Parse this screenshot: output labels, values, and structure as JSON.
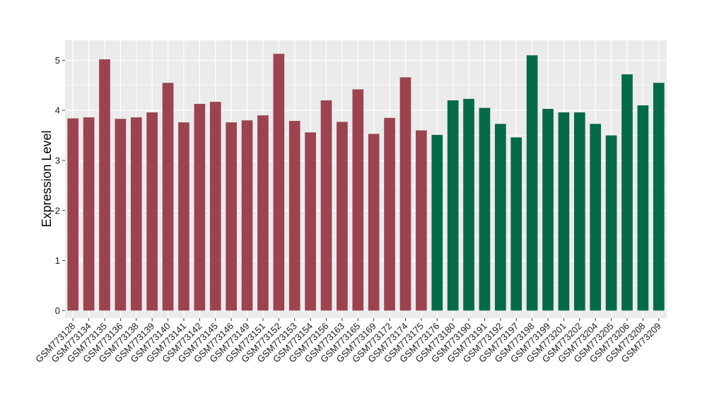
{
  "chart_data": {
    "type": "bar",
    "title": "",
    "xlabel": "",
    "ylabel": "Expression Level",
    "ylim": [
      -0.15,
      5.4
    ],
    "yticks": [
      0,
      1,
      2,
      3,
      4,
      5
    ],
    "grid": true,
    "legend": "none",
    "background": "#ebebeb",
    "categories": [
      "GSM773128",
      "GSM773134",
      "GSM773135",
      "GSM773136",
      "GSM773138",
      "GSM773139",
      "GSM773140",
      "GSM773141",
      "GSM773142",
      "GSM773145",
      "GSM773146",
      "GSM773149",
      "GSM773151",
      "GSM773152",
      "GSM773153",
      "GSM773154",
      "GSM773156",
      "GSM773163",
      "GSM773165",
      "GSM773169",
      "GSM773172",
      "GSM773174",
      "GSM773175",
      "GSM773176",
      "GSM773180",
      "GSM773190",
      "GSM773191",
      "GSM773192",
      "GSM773197",
      "GSM773198",
      "GSM773199",
      "GSM773201",
      "GSM773202",
      "GSM773204",
      "GSM773205",
      "GSM773206",
      "GSM773208",
      "GSM773209"
    ],
    "values": [
      3.84,
      3.86,
      5.02,
      3.83,
      3.86,
      3.96,
      4.55,
      3.76,
      4.13,
      4.17,
      3.76,
      3.8,
      3.9,
      5.13,
      3.79,
      3.56,
      4.2,
      3.77,
      4.42,
      3.53,
      3.85,
      4.66,
      3.6,
      3.51,
      4.2,
      4.23,
      4.05,
      3.73,
      3.46,
      5.1,
      4.03,
      3.96,
      3.96,
      3.73,
      3.5,
      4.72,
      4.1,
      4.55
    ],
    "groups": [
      0,
      0,
      0,
      0,
      0,
      0,
      0,
      0,
      0,
      0,
      0,
      0,
      0,
      0,
      0,
      0,
      0,
      0,
      0,
      0,
      0,
      0,
      0,
      1,
      1,
      1,
      1,
      1,
      1,
      1,
      1,
      1,
      1,
      1,
      1,
      1,
      1,
      1
    ],
    "group_colors": [
      "#9b4450",
      "#046b46"
    ]
  }
}
